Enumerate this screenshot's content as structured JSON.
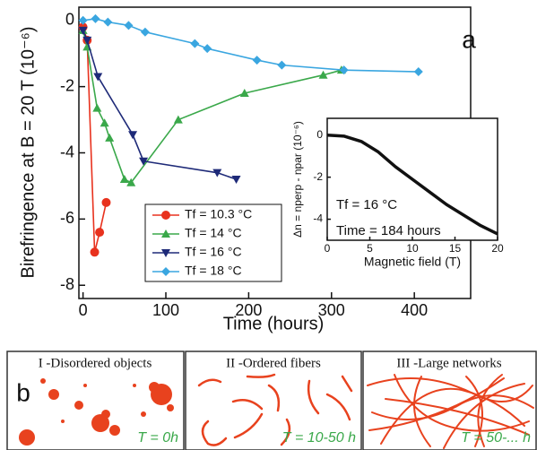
{
  "chart_data": [
    {
      "type": "line",
      "xlabel": "Time (hours)",
      "ylabel": "Birefringence at B = 20 T (10⁻⁶)",
      "annotations": [
        "a"
      ],
      "xlim": [
        -5,
        468
      ],
      "ylim": [
        -8.4,
        0.4
      ],
      "xticks": [
        0,
        100,
        200,
        300,
        400
      ],
      "yticks": [
        0,
        -2,
        -4,
        -6,
        -8
      ],
      "series": [
        {
          "name": "Tf = 10.3 °C",
          "color": "#e8321e",
          "marker": "circle",
          "x": [
            0,
            5,
            14,
            20,
            28
          ],
          "values": [
            -0.2,
            -0.6,
            -7.0,
            -6.4,
            -5.5
          ]
        },
        {
          "name": "Tf = 14 °C",
          "color": "#3aa84a",
          "marker": "triangle-up",
          "x": [
            0,
            5,
            17,
            26,
            32,
            50,
            58,
            115,
            195,
            290,
            312
          ],
          "values": [
            -0.3,
            -0.8,
            -2.65,
            -3.1,
            -3.55,
            -4.8,
            -4.9,
            -3.0,
            -2.2,
            -1.65,
            -1.5
          ]
        },
        {
          "name": "Tf = 16 °C",
          "color": "#1e2a78",
          "marker": "triangle-down",
          "x": [
            0,
            5,
            18,
            60,
            73,
            162,
            185
          ],
          "values": [
            -0.3,
            -0.6,
            -1.7,
            -3.45,
            -4.25,
            -4.6,
            -4.8
          ]
        },
        {
          "name": "Tf = 18 °C",
          "color": "#3aa6e0",
          "marker": "diamond",
          "x": [
            0,
            15,
            30,
            55,
            75,
            135,
            150,
            210,
            240,
            315,
            405
          ],
          "values": [
            0,
            0.05,
            -0.05,
            -0.15,
            -0.35,
            -0.7,
            -0.85,
            -1.2,
            -1.35,
            -1.5,
            -1.55
          ]
        }
      ]
    },
    {
      "type": "line",
      "xlabel": "Magnetic field (T)",
      "ylabel": "Δn = nperp - npar (10⁻⁶)",
      "annotations": [
        "Tf = 16 °C",
        "Time = 184 hours"
      ],
      "xlim": [
        0,
        20
      ],
      "ylim": [
        -5,
        0.8
      ],
      "xticks": [
        0,
        5,
        10,
        15,
        20
      ],
      "yticks": [
        0,
        -2,
        -4
      ],
      "color": "#111111",
      "x": [
        0,
        2,
        4,
        6,
        8,
        10,
        12,
        14,
        16,
        18,
        20
      ],
      "values": [
        0,
        -0.05,
        -0.3,
        -0.8,
        -1.5,
        -2.1,
        -2.7,
        -3.3,
        -3.8,
        -4.3,
        -4.7
      ]
    }
  ],
  "panel_b": {
    "label": "b",
    "panels": [
      {
        "title": "I -Disordered objects",
        "time": "T = 0h"
      },
      {
        "title": "II -Ordered fibers",
        "time": "T = 10-50 h"
      },
      {
        "title": "III -Large networks",
        "time": "T = 50-... h"
      }
    ]
  }
}
